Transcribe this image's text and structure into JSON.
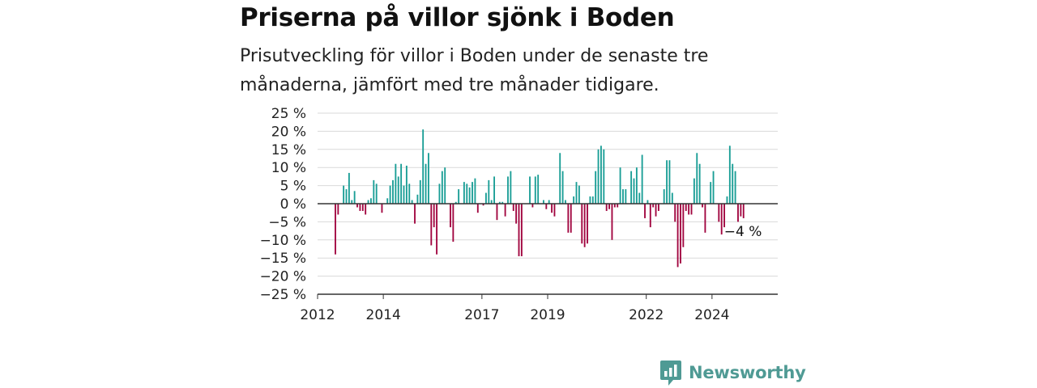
{
  "title": "Priserna på villor sjönk i Boden",
  "subtitle": "Prisutveckling för villor i Boden under de senaste tre månaderna, jämfört med tre månader tidigare.",
  "brand": {
    "name": "Newsworthy",
    "icon": "newsworthy-logo-icon",
    "color": "#4f9a94"
  },
  "chart_data": {
    "type": "bar",
    "x_unit": "month",
    "x_start": "2012-07",
    "x_range": [
      "2012-01",
      "2025-12"
    ],
    "ylim": [
      -25,
      25
    ],
    "yticks": [
      25,
      20,
      15,
      10,
      5,
      0,
      -5,
      -10,
      -15,
      -20,
      -25
    ],
    "ytick_labels": [
      "25 %",
      "20 %",
      "15 %",
      "10 %",
      "5 %",
      "0 %",
      "−5 %",
      "−10 %",
      "−15 %",
      "−20 %",
      "−25 %"
    ],
    "xticks": [
      "2012",
      "2014",
      "2017",
      "2019",
      "2022",
      "2024"
    ],
    "grid": true,
    "colors": {
      "positive": "#1a9e96",
      "negative": "#a1053f"
    },
    "annotation": {
      "text": "−4 %",
      "target": "last"
    },
    "values": [
      -14,
      -3,
      0,
      5,
      4,
      8.5,
      1,
      3.5,
      -1,
      -2,
      -2,
      -3,
      1,
      1.5,
      6.5,
      5.5,
      0,
      -2.5,
      0,
      1.5,
      5,
      6.5,
      11,
      7.5,
      11,
      5,
      10.5,
      5.5,
      1,
      -5.5,
      2.5,
      6.5,
      20.5,
      11,
      14,
      -11.5,
      -6.5,
      -14,
      5.5,
      9,
      10,
      0,
      -6.5,
      -10.5,
      0.5,
      4,
      0,
      6,
      5.5,
      4.5,
      6,
      7,
      -2.5,
      0,
      -0.5,
      3,
      6.5,
      1,
      7.5,
      -4.5,
      0.5,
      0.5,
      -3.5,
      7.5,
      9,
      -2,
      -5.5,
      -14.5,
      -14.5,
      0,
      0,
      7.5,
      -1,
      7.5,
      8,
      0,
      1,
      -1.5,
      1,
      -2.5,
      -3.5,
      0,
      14,
      9,
      1,
      -8,
      -8,
      2,
      6,
      5,
      -11,
      -12,
      -11,
      2,
      2,
      9,
      15,
      16,
      15,
      -2,
      -1.5,
      -10,
      -1,
      -1,
      10,
      4,
      4,
      0,
      9,
      7,
      10,
      3,
      13.5,
      -4,
      1,
      -6.5,
      -1,
      -3.5,
      -2,
      0,
      4,
      12,
      12,
      3,
      -5,
      -17.5,
      -16.5,
      -12,
      -2,
      -3,
      -3,
      7,
      14,
      11,
      -1,
      -8,
      0,
      6,
      9,
      0,
      -5,
      -8.5,
      -6.5,
      2,
      16,
      11,
      9,
      -5,
      -3.5,
      -4
    ]
  }
}
